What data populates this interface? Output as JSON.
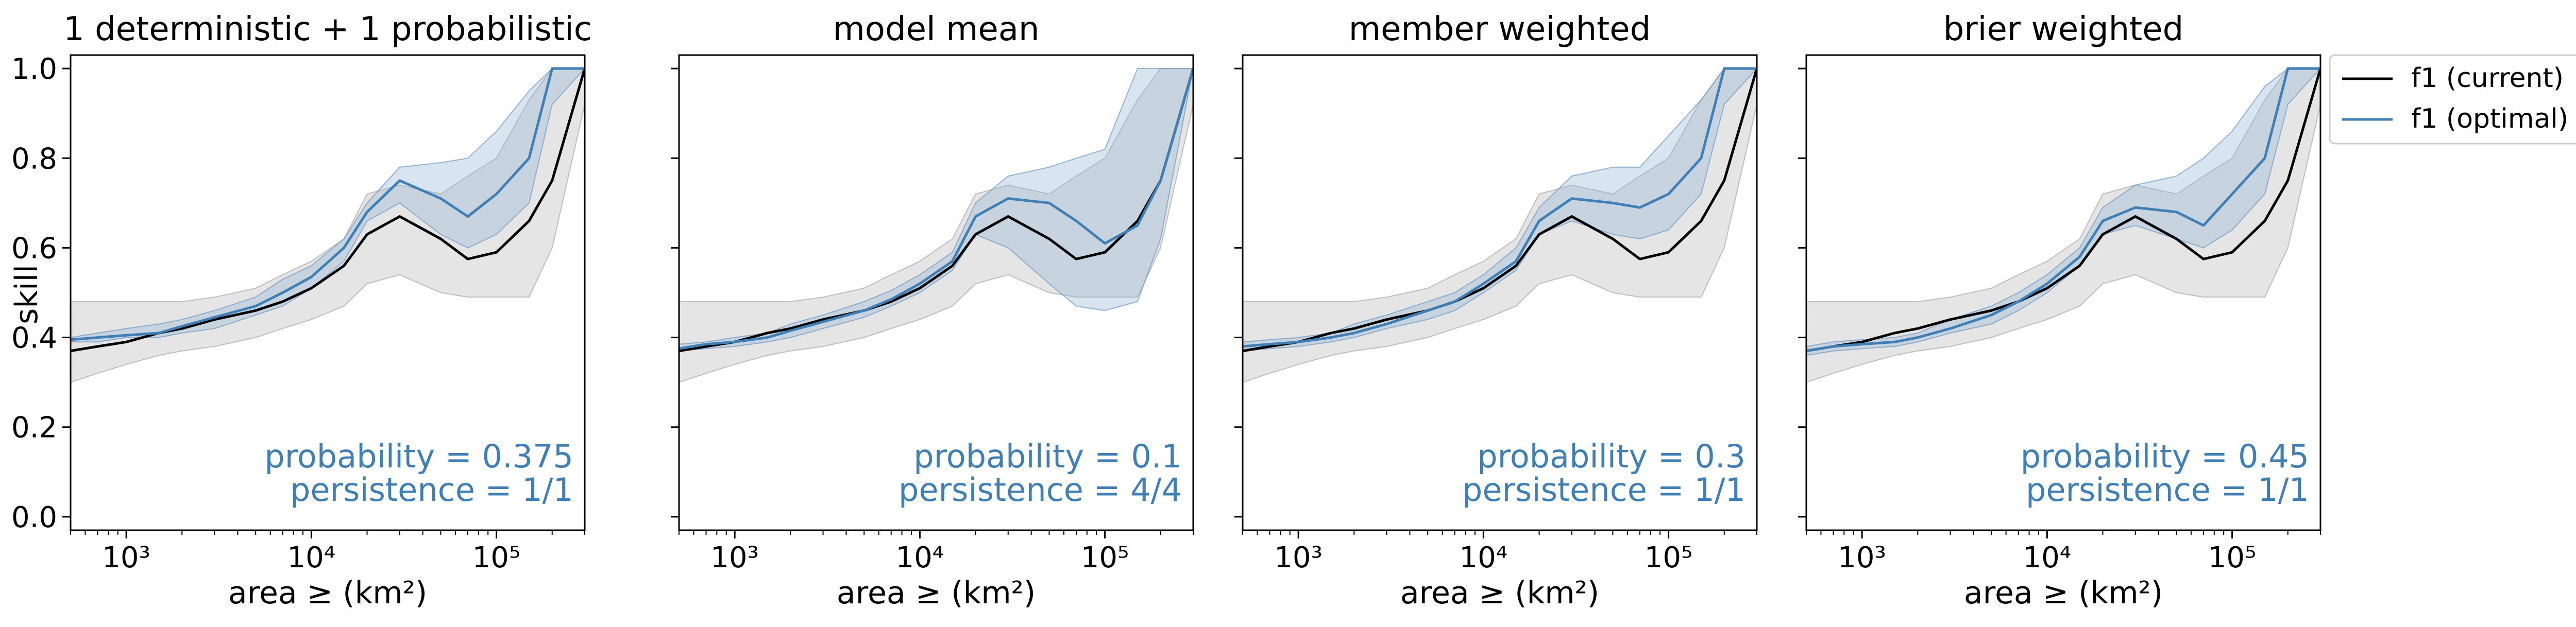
{
  "legend": {
    "placement": "outside-right",
    "entries": [
      {
        "label": "f1 (current)",
        "color": "#000000"
      },
      {
        "label": "f1 (optimal)",
        "color": "#3f7fb5"
      }
    ]
  },
  "y_label": "skill",
  "x_label": "area ≥ (km²)",
  "colors": {
    "current_line": "#000000",
    "current_band": "#d4d4d4",
    "optimal_line": "#3f7fb5",
    "optimal_band": "#8fb5d6",
    "annotation": "#3f7fb5"
  },
  "chart_data": [
    {
      "type": "line",
      "title": "1 deterministic + 1 probabilistic",
      "xscale": "log",
      "xlim": [
        500,
        300000
      ],
      "ylim": [
        -0.03,
        1.03
      ],
      "x_ticks": [
        {
          "value": 1000,
          "label": "10³"
        },
        {
          "value": 10000,
          "label": "10⁴"
        },
        {
          "value": 100000,
          "label": "10⁵"
        }
      ],
      "y_ticks": [
        {
          "value": 0.0,
          "label": "0.0"
        },
        {
          "value": 0.2,
          "label": "0.2"
        },
        {
          "value": 0.4,
          "label": "0.4"
        },
        {
          "value": 0.6,
          "label": "0.6"
        },
        {
          "value": 0.8,
          "label": "0.8"
        },
        {
          "value": 1.0,
          "label": "1.0"
        }
      ],
      "x": [
        500,
        700,
        1000,
        1500,
        2000,
        3000,
        5000,
        7000,
        10000,
        15000,
        20000,
        30000,
        50000,
        70000,
        100000,
        150000,
        200000,
        300000
      ],
      "series": [
        {
          "name": "f1 (current)",
          "values": [
            0.37,
            0.38,
            0.39,
            0.41,
            0.42,
            0.44,
            0.46,
            0.48,
            0.51,
            0.56,
            0.63,
            0.67,
            0.62,
            0.575,
            0.59,
            0.66,
            0.75,
            1.0
          ],
          "lower": [
            0.3,
            0.32,
            0.34,
            0.36,
            0.37,
            0.38,
            0.4,
            0.42,
            0.44,
            0.47,
            0.52,
            0.54,
            0.5,
            0.49,
            0.49,
            0.49,
            0.6,
            0.92
          ],
          "upper": [
            0.48,
            0.48,
            0.48,
            0.48,
            0.48,
            0.49,
            0.51,
            0.54,
            0.57,
            0.62,
            0.72,
            0.74,
            0.72,
            0.76,
            0.8,
            0.93,
            1.0,
            1.0
          ]
        },
        {
          "name": "f1 (optimal)",
          "values": [
            0.395,
            0.4,
            0.405,
            0.41,
            0.425,
            0.445,
            0.47,
            0.5,
            0.535,
            0.6,
            0.68,
            0.75,
            0.71,
            0.67,
            0.72,
            0.8,
            1.0,
            1.0
          ],
          "lower": [
            0.39,
            0.39,
            0.4,
            0.4,
            0.41,
            0.42,
            0.45,
            0.47,
            0.51,
            0.57,
            0.66,
            0.7,
            0.63,
            0.6,
            0.63,
            0.7,
            0.92,
            1.0
          ],
          "upper": [
            0.4,
            0.41,
            0.42,
            0.43,
            0.44,
            0.46,
            0.49,
            0.53,
            0.56,
            0.62,
            0.7,
            0.78,
            0.79,
            0.8,
            0.86,
            0.95,
            1.0,
            1.0
          ]
        }
      ],
      "annotation": {
        "probability": "probability = 0.375",
        "persistence": "persistence = 1/1"
      }
    },
    {
      "type": "line",
      "title": "model mean",
      "xscale": "log",
      "xlim": [
        500,
        300000
      ],
      "ylim": [
        -0.03,
        1.03
      ],
      "x_ticks": [
        {
          "value": 1000,
          "label": "10³"
        },
        {
          "value": 10000,
          "label": "10⁴"
        },
        {
          "value": 100000,
          "label": "10⁵"
        }
      ],
      "y_ticks": [],
      "x": [
        500,
        700,
        1000,
        1500,
        2000,
        3000,
        5000,
        7000,
        10000,
        15000,
        20000,
        30000,
        50000,
        70000,
        100000,
        150000,
        200000,
        300000
      ],
      "series": [
        {
          "name": "f1 (current)",
          "values": [
            0.37,
            0.38,
            0.39,
            0.41,
            0.42,
            0.44,
            0.46,
            0.48,
            0.51,
            0.56,
            0.63,
            0.67,
            0.62,
            0.575,
            0.59,
            0.66,
            0.75,
            1.0
          ],
          "lower": [
            0.3,
            0.32,
            0.34,
            0.36,
            0.37,
            0.38,
            0.4,
            0.42,
            0.44,
            0.47,
            0.52,
            0.54,
            0.5,
            0.49,
            0.49,
            0.49,
            0.6,
            0.92
          ],
          "upper": [
            0.48,
            0.48,
            0.48,
            0.48,
            0.48,
            0.49,
            0.51,
            0.54,
            0.57,
            0.62,
            0.72,
            0.74,
            0.72,
            0.76,
            0.8,
            0.93,
            1.0,
            1.0
          ]
        },
        {
          "name": "f1 (optimal)",
          "values": [
            0.375,
            0.385,
            0.39,
            0.4,
            0.415,
            0.435,
            0.46,
            0.485,
            0.52,
            0.57,
            0.67,
            0.71,
            0.7,
            0.66,
            0.61,
            0.65,
            0.75,
            1.0
          ],
          "lower": [
            0.37,
            0.375,
            0.38,
            0.39,
            0.4,
            0.42,
            0.445,
            0.47,
            0.5,
            0.55,
            0.63,
            0.6,
            0.52,
            0.47,
            0.46,
            0.48,
            0.62,
            1.0
          ],
          "upper": [
            0.385,
            0.39,
            0.4,
            0.41,
            0.43,
            0.45,
            0.48,
            0.505,
            0.54,
            0.59,
            0.7,
            0.76,
            0.78,
            0.8,
            0.82,
            1.0,
            1.0,
            1.0
          ]
        }
      ],
      "annotation": {
        "probability": "probability = 0.1",
        "persistence": "persistence = 4/4"
      }
    },
    {
      "type": "line",
      "title": "member weighted",
      "xscale": "log",
      "xlim": [
        500,
        300000
      ],
      "ylim": [
        -0.03,
        1.03
      ],
      "x_ticks": [
        {
          "value": 1000,
          "label": "10³"
        },
        {
          "value": 10000,
          "label": "10⁴"
        },
        {
          "value": 100000,
          "label": "10⁵"
        }
      ],
      "y_ticks": [],
      "x": [
        500,
        700,
        1000,
        1500,
        2000,
        3000,
        5000,
        7000,
        10000,
        15000,
        20000,
        30000,
        50000,
        70000,
        100000,
        150000,
        200000,
        300000
      ],
      "series": [
        {
          "name": "f1 (current)",
          "values": [
            0.37,
            0.38,
            0.39,
            0.41,
            0.42,
            0.44,
            0.46,
            0.48,
            0.51,
            0.56,
            0.63,
            0.67,
            0.62,
            0.575,
            0.59,
            0.66,
            0.75,
            1.0
          ],
          "lower": [
            0.3,
            0.32,
            0.34,
            0.36,
            0.37,
            0.38,
            0.4,
            0.42,
            0.44,
            0.47,
            0.52,
            0.54,
            0.5,
            0.49,
            0.49,
            0.49,
            0.6,
            0.92
          ],
          "upper": [
            0.48,
            0.48,
            0.48,
            0.48,
            0.48,
            0.49,
            0.51,
            0.54,
            0.57,
            0.62,
            0.72,
            0.74,
            0.72,
            0.76,
            0.8,
            0.93,
            1.0,
            1.0
          ]
        },
        {
          "name": "f1 (optimal)",
          "values": [
            0.38,
            0.385,
            0.39,
            0.4,
            0.41,
            0.43,
            0.46,
            0.48,
            0.52,
            0.57,
            0.66,
            0.71,
            0.7,
            0.69,
            0.72,
            0.8,
            1.0,
            1.0
          ],
          "lower": [
            0.37,
            0.375,
            0.38,
            0.39,
            0.4,
            0.42,
            0.44,
            0.46,
            0.5,
            0.55,
            0.63,
            0.66,
            0.63,
            0.62,
            0.64,
            0.72,
            0.92,
            1.0
          ],
          "upper": [
            0.39,
            0.395,
            0.4,
            0.41,
            0.43,
            0.45,
            0.48,
            0.5,
            0.54,
            0.6,
            0.69,
            0.76,
            0.78,
            0.78,
            0.85,
            0.93,
            1.0,
            1.0
          ]
        }
      ],
      "annotation": {
        "probability": "probability = 0.3",
        "persistence": "persistence = 1/1"
      }
    },
    {
      "type": "line",
      "title": "brier weighted",
      "xscale": "log",
      "xlim": [
        500,
        300000
      ],
      "ylim": [
        -0.03,
        1.03
      ],
      "x_ticks": [
        {
          "value": 1000,
          "label": "10³"
        },
        {
          "value": 10000,
          "label": "10⁴"
        },
        {
          "value": 100000,
          "label": "10⁵"
        }
      ],
      "y_ticks": [],
      "x": [
        500,
        700,
        1000,
        1500,
        2000,
        3000,
        5000,
        7000,
        10000,
        15000,
        20000,
        30000,
        50000,
        70000,
        100000,
        150000,
        200000,
        300000
      ],
      "series": [
        {
          "name": "f1 (current)",
          "values": [
            0.37,
            0.38,
            0.39,
            0.41,
            0.42,
            0.44,
            0.46,
            0.48,
            0.51,
            0.56,
            0.63,
            0.67,
            0.62,
            0.575,
            0.59,
            0.66,
            0.75,
            1.0
          ],
          "lower": [
            0.3,
            0.32,
            0.34,
            0.36,
            0.37,
            0.38,
            0.4,
            0.42,
            0.44,
            0.47,
            0.52,
            0.54,
            0.5,
            0.49,
            0.49,
            0.49,
            0.6,
            0.92
          ],
          "upper": [
            0.48,
            0.48,
            0.48,
            0.48,
            0.48,
            0.49,
            0.51,
            0.54,
            0.57,
            0.62,
            0.72,
            0.74,
            0.72,
            0.76,
            0.8,
            0.93,
            1.0,
            1.0
          ]
        },
        {
          "name": "f1 (optimal)",
          "values": [
            0.37,
            0.38,
            0.385,
            0.39,
            0.4,
            0.42,
            0.45,
            0.48,
            0.52,
            0.58,
            0.66,
            0.69,
            0.68,
            0.65,
            0.72,
            0.8,
            1.0,
            1.0
          ],
          "lower": [
            0.36,
            0.37,
            0.375,
            0.38,
            0.39,
            0.41,
            0.43,
            0.46,
            0.5,
            0.56,
            0.63,
            0.65,
            0.62,
            0.6,
            0.64,
            0.72,
            0.92,
            1.0
          ],
          "upper": [
            0.38,
            0.39,
            0.395,
            0.4,
            0.41,
            0.44,
            0.47,
            0.5,
            0.54,
            0.6,
            0.69,
            0.74,
            0.76,
            0.8,
            0.86,
            0.96,
            1.0,
            1.0
          ]
        }
      ],
      "annotation": {
        "probability": "probability = 0.45",
        "persistence": "persistence = 1/1"
      }
    }
  ]
}
